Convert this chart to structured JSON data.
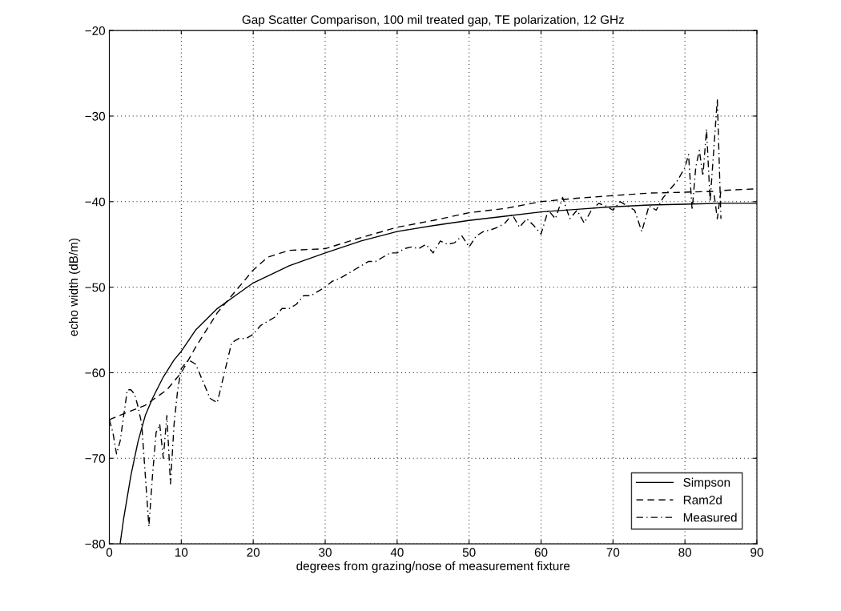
{
  "chart_data": {
    "type": "line",
    "title": "Gap Scatter Comparison, 100 mil treated gap, TE polarization, 12 GHz",
    "xlabel": "degrees from grazing/nose of measurement fixture",
    "ylabel": "echo width (dB/m)",
    "xlim": [
      0,
      90
    ],
    "ylim": [
      -80,
      -20
    ],
    "xticks": [
      0,
      10,
      20,
      30,
      40,
      50,
      60,
      70,
      80,
      90
    ],
    "yticks": [
      -80,
      -70,
      -60,
      -50,
      -40,
      -30,
      -20
    ],
    "grid": true,
    "legend": "bottom right",
    "series": [
      {
        "name": "Simpson",
        "color": "#000000",
        "line_style": "solid",
        "x": [
          1.5,
          2,
          3,
          4,
          5,
          6,
          7.5,
          9,
          10,
          12,
          15,
          17.5,
          20,
          25,
          30,
          35,
          40,
          45,
          50,
          55,
          60,
          65,
          70,
          75,
          80,
          85,
          90
        ],
        "values": [
          -80,
          -77,
          -72,
          -68,
          -65,
          -63,
          -60.5,
          -58.5,
          -57.5,
          -55,
          -52.5,
          -51,
          -49.5,
          -47.5,
          -46,
          -44.6,
          -43.5,
          -42.8,
          -42.2,
          -41.7,
          -41.2,
          -40.9,
          -40.6,
          -40.4,
          -40.3,
          -40.2,
          -40.2
        ]
      },
      {
        "name": "Ram2d",
        "color": "#000000",
        "line_style": "dashed",
        "x": [
          0,
          2,
          5,
          8,
          10,
          12,
          15,
          17,
          20,
          22,
          25,
          30,
          35,
          40,
          45,
          50,
          55,
          60,
          65,
          70,
          75,
          80,
          84,
          84.5,
          85,
          90
        ],
        "values": [
          -65.5,
          -64.8,
          -63.8,
          -62,
          -60,
          -57,
          -53,
          -51,
          -48,
          -46.5,
          -45.7,
          -45.5,
          -44.2,
          -43,
          -42.2,
          -41.3,
          -40.8,
          -40,
          -39.6,
          -39.3,
          -39,
          -38.9,
          -38.8,
          -42,
          -38.7,
          -38.5
        ]
      },
      {
        "name": "Measured",
        "color": "#000000",
        "line_style": "dashdot",
        "x": [
          0,
          0.5,
          1,
          1.5,
          2,
          2.5,
          3,
          3.5,
          4,
          4.5,
          5,
          5.5,
          6,
          6.5,
          7,
          7.5,
          8,
          8.5,
          9,
          9.5,
          10,
          11,
          12,
          13,
          14,
          15,
          16,
          17,
          18,
          19,
          20,
          21,
          22,
          23,
          24,
          25,
          26,
          27,
          28,
          29,
          30,
          31,
          32,
          33,
          34,
          35,
          36,
          37,
          38,
          39,
          40,
          41,
          42,
          43,
          44,
          45,
          46,
          47,
          48,
          49,
          50,
          51,
          52,
          53,
          54,
          55,
          56,
          57,
          58,
          59,
          60,
          61,
          62,
          63,
          64,
          65,
          66,
          67,
          68,
          69,
          70,
          71,
          72,
          73,
          74,
          75,
          76,
          77,
          78,
          79,
          80,
          80.5,
          81,
          81.5,
          82,
          82.5,
          83,
          83.5,
          84,
          84.5,
          85
        ],
        "values": [
          -65.5,
          -67,
          -69.5,
          -68,
          -65,
          -62,
          -62,
          -62.5,
          -64,
          -66,
          -72,
          -78,
          -72,
          -67,
          -66,
          -70,
          -65,
          -73,
          -66,
          -62,
          -59.5,
          -58.5,
          -59,
          -61,
          -63,
          -63.5,
          -60,
          -56.5,
          -56,
          -56,
          -55.5,
          -54.5,
          -54,
          -53.5,
          -52.5,
          -52.5,
          -52,
          -51,
          -51,
          -50.5,
          -50,
          -49.3,
          -49,
          -48.5,
          -48,
          -47.5,
          -47,
          -47,
          -46.5,
          -46,
          -46,
          -45.5,
          -45.3,
          -45.5,
          -45,
          -46,
          -44.6,
          -45,
          -44.8,
          -44,
          -45.3,
          -44,
          -43.5,
          -43.3,
          -43,
          -42.5,
          -41.5,
          -43,
          -42,
          -42.8,
          -43.8,
          -41,
          -42,
          -39.5,
          -42,
          -41,
          -42.5,
          -41,
          -40.2,
          -40.5,
          -41,
          -40,
          -40.5,
          -41,
          -43.5,
          -40.5,
          -41,
          -39.5,
          -38.5,
          -37.5,
          -36,
          -34.5,
          -41,
          -36,
          -34,
          -37,
          -31.5,
          -40,
          -34,
          -28,
          -42
        ]
      }
    ]
  }
}
